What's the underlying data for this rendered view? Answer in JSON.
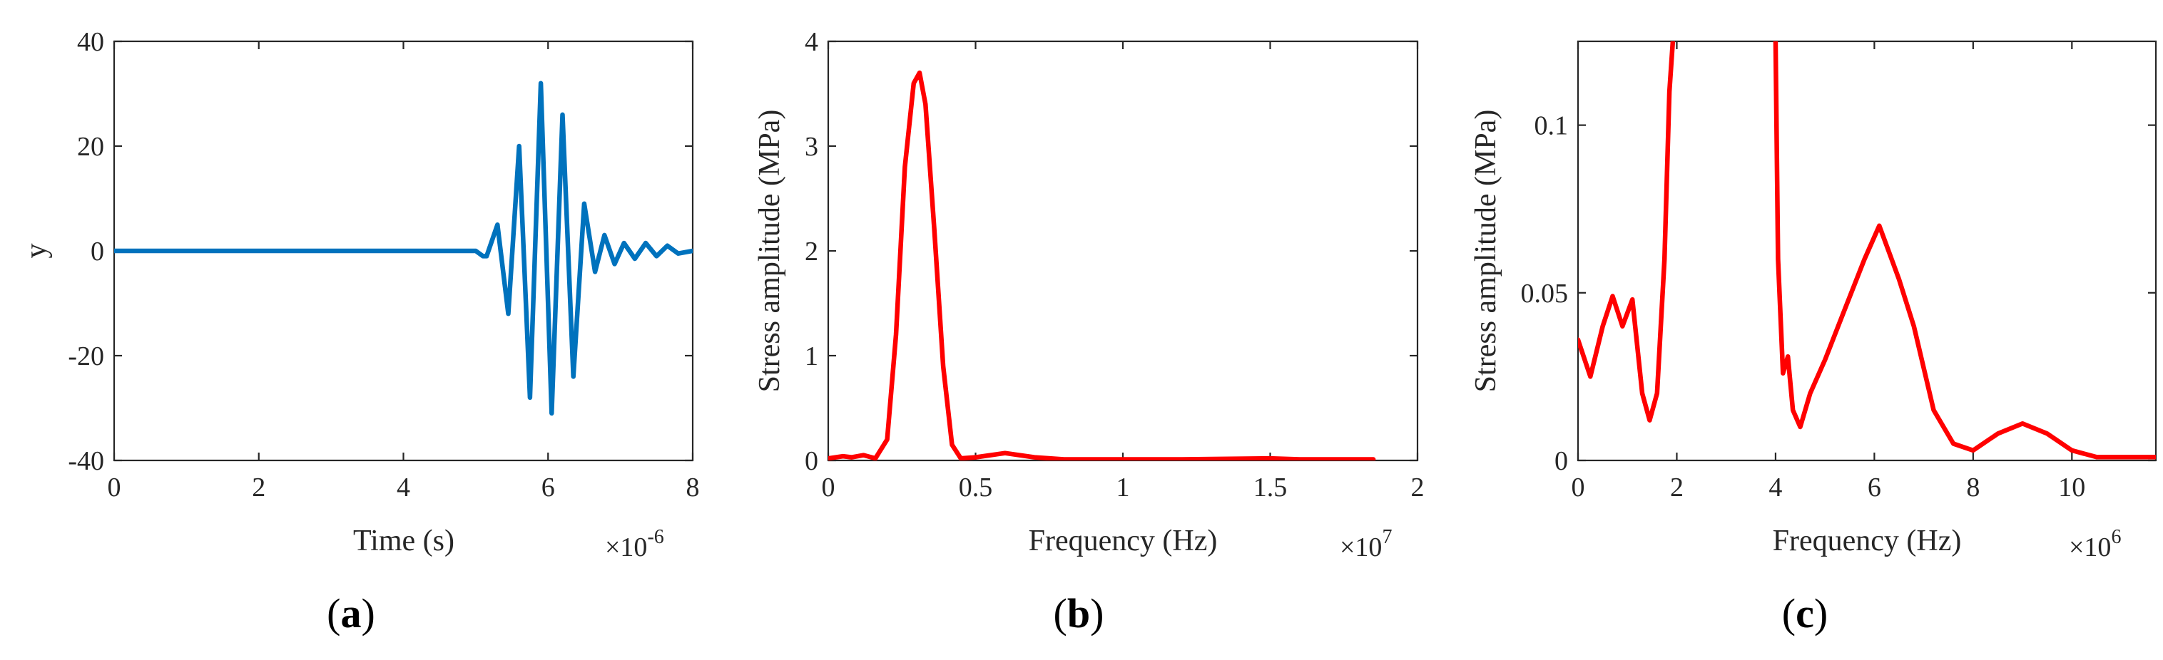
{
  "colors": {
    "signal": "#0072BD",
    "spectrum": "#FF0000",
    "axes": "#262626"
  },
  "chart_data": [
    {
      "type": "line",
      "panel": "a",
      "panel_label": "a",
      "xlabel": "Time (s)",
      "ylabel": "y",
      "x_multiplier_base": "×10",
      "x_multiplier_exp": "-6",
      "xlim": [
        0,
        8
      ],
      "ylim": [
        -40,
        40
      ],
      "xticks": [
        0,
        2,
        4,
        6,
        8
      ],
      "xtick_labels": [
        "0",
        "2",
        "4",
        "6",
        "8"
      ],
      "yticks": [
        -40,
        -20,
        0,
        20,
        40
      ],
      "ytick_labels": [
        "-40",
        "-20",
        "0",
        "20",
        "40"
      ],
      "series": [
        {
          "name": "signal",
          "color": "#0072BD",
          "x": [
            0,
            5.0,
            5.1,
            5.15,
            5.3,
            5.45,
            5.6,
            5.75,
            5.9,
            6.05,
            6.2,
            6.35,
            6.5,
            6.65,
            6.78,
            6.92,
            7.05,
            7.2,
            7.35,
            7.5,
            7.65,
            7.8,
            8.0
          ],
          "y": [
            0,
            0,
            -1,
            -1,
            5,
            -12,
            20,
            -28,
            32,
            -31,
            26,
            -24,
            9,
            -4,
            3,
            -2.5,
            1.5,
            -1.5,
            1.5,
            -1,
            1,
            -0.5,
            0
          ]
        }
      ]
    },
    {
      "type": "line",
      "panel": "b",
      "panel_label": "b",
      "xlabel": "Frequency (Hz)",
      "ylabel": "Stress amplitude (MPa)",
      "x_multiplier_base": "×10",
      "x_multiplier_exp": "7",
      "xlim": [
        0,
        2
      ],
      "ylim": [
        0,
        4
      ],
      "xticks": [
        0,
        0.5,
        1,
        1.5,
        2
      ],
      "xtick_labels": [
        "0",
        "0.5",
        "1",
        "1.5",
        "2"
      ],
      "yticks": [
        0,
        1,
        2,
        3,
        4
      ],
      "ytick_labels": [
        "0",
        "1",
        "2",
        "3",
        "4"
      ],
      "series": [
        {
          "name": "spectrum",
          "color": "#FF0000",
          "x": [
            0,
            0.05,
            0.08,
            0.12,
            0.16,
            0.2,
            0.23,
            0.26,
            0.29,
            0.31,
            0.33,
            0.36,
            0.39,
            0.42,
            0.45,
            0.5,
            0.6,
            0.7,
            0.8,
            1.0,
            1.2,
            1.5,
            1.6,
            1.85
          ],
          "y": [
            0.02,
            0.04,
            0.03,
            0.05,
            0.02,
            0.2,
            1.2,
            2.8,
            3.6,
            3.7,
            3.4,
            2.2,
            0.9,
            0.15,
            0.02,
            0.03,
            0.07,
            0.03,
            0.01,
            0.01,
            0.01,
            0.02,
            0.01,
            0.01
          ]
        }
      ]
    },
    {
      "type": "line",
      "panel": "c",
      "panel_label": "c",
      "xlabel": "Frequency (Hz)",
      "ylabel": "Stress amplitude (MPa)",
      "x_multiplier_base": "×10",
      "x_multiplier_exp": "6",
      "xlim": [
        0,
        11.7
      ],
      "ylim": [
        0,
        0.125
      ],
      "xticks": [
        0,
        2,
        4,
        6,
        8,
        10
      ],
      "xtick_labels": [
        "0",
        "2",
        "4",
        "6",
        "8",
        "10"
      ],
      "yticks": [
        0,
        0.05,
        0.1
      ],
      "ytick_labels": [
        "0",
        "0.05",
        "0.1"
      ],
      "series": [
        {
          "name": "spectrum-zoom-left",
          "color": "#FF0000",
          "x": [
            0,
            0.25,
            0.5,
            0.7,
            0.9,
            1.1,
            1.3,
            1.45,
            1.6,
            1.75,
            1.85,
            1.92
          ],
          "y": [
            0.036,
            0.025,
            0.04,
            0.049,
            0.04,
            0.048,
            0.02,
            0.012,
            0.02,
            0.06,
            0.11,
            0.125
          ]
        },
        {
          "name": "spectrum-zoom-right",
          "color": "#FF0000",
          "x": [
            4.0,
            4.05,
            4.15,
            4.25,
            4.35,
            4.5,
            4.7,
            5.0,
            5.4,
            5.8,
            6.1,
            6.3,
            6.5,
            6.8,
            7.2,
            7.6,
            8.0,
            8.5,
            9.0,
            9.5,
            10.0,
            10.5,
            11.7
          ],
          "y": [
            0.125,
            0.06,
            0.026,
            0.031,
            0.015,
            0.01,
            0.02,
            0.03,
            0.045,
            0.06,
            0.07,
            0.062,
            0.054,
            0.04,
            0.015,
            0.005,
            0.003,
            0.008,
            0.011,
            0.008,
            0.003,
            0.001,
            0.001
          ]
        }
      ]
    }
  ]
}
